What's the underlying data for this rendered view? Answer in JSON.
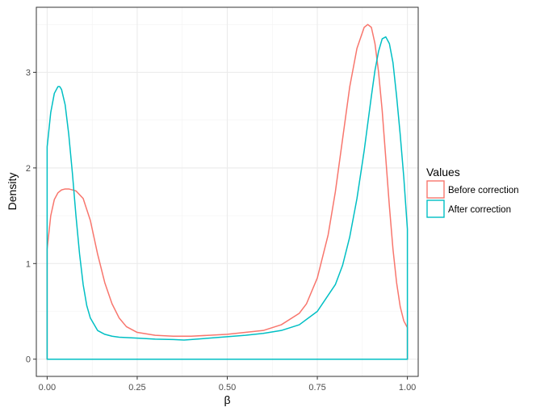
{
  "chart_data": {
    "type": "density",
    "title": "",
    "xlabel": "β",
    "ylabel": "Density",
    "xlim": [
      -0.03,
      1.03
    ],
    "ylim": [
      -0.18,
      3.68
    ],
    "x_ticks": [
      0.0,
      0.25,
      0.5,
      0.75,
      1.0
    ],
    "x_tick_labels": [
      "0.00",
      "0.25",
      "0.50",
      "0.75",
      "1.00"
    ],
    "y_ticks": [
      0,
      1,
      2,
      3
    ],
    "y_tick_labels": [
      "0",
      "1",
      "2",
      "3"
    ],
    "grid": true,
    "legend": {
      "title": "Values",
      "placement": "right"
    },
    "series": [
      {
        "name": "Before correction",
        "color": "#F8766D",
        "x": [
          0.0,
          0.01,
          0.02,
          0.03,
          0.04,
          0.05,
          0.06,
          0.08,
          0.1,
          0.12,
          0.14,
          0.16,
          0.18,
          0.2,
          0.22,
          0.25,
          0.3,
          0.35,
          0.4,
          0.45,
          0.5,
          0.55,
          0.6,
          0.65,
          0.7,
          0.72,
          0.75,
          0.78,
          0.8,
          0.82,
          0.84,
          0.86,
          0.88,
          0.89,
          0.9,
          0.91,
          0.92,
          0.93,
          0.94,
          0.95,
          0.96,
          0.97,
          0.98,
          0.99,
          1.0
        ],
        "y": [
          1.15,
          1.5,
          1.67,
          1.74,
          1.77,
          1.78,
          1.78,
          1.76,
          1.68,
          1.45,
          1.1,
          0.8,
          0.58,
          0.43,
          0.34,
          0.28,
          0.25,
          0.24,
          0.24,
          0.25,
          0.26,
          0.28,
          0.3,
          0.36,
          0.48,
          0.58,
          0.85,
          1.3,
          1.75,
          2.3,
          2.85,
          3.25,
          3.47,
          3.5,
          3.47,
          3.3,
          3.0,
          2.6,
          2.1,
          1.6,
          1.15,
          0.8,
          0.55,
          0.4,
          0.33
        ]
      },
      {
        "name": "After correction",
        "color": "#00BFC4",
        "x": [
          0.0,
          0.005,
          0.01,
          0.02,
          0.03,
          0.035,
          0.04,
          0.05,
          0.06,
          0.07,
          0.08,
          0.09,
          0.1,
          0.11,
          0.12,
          0.14,
          0.16,
          0.18,
          0.2,
          0.25,
          0.3,
          0.35,
          0.38,
          0.4,
          0.45,
          0.5,
          0.55,
          0.6,
          0.65,
          0.7,
          0.75,
          0.8,
          0.82,
          0.84,
          0.86,
          0.88,
          0.9,
          0.91,
          0.92,
          0.93,
          0.94,
          0.95,
          0.96,
          0.97,
          0.98,
          0.99,
          1.0
        ],
        "y": [
          2.22,
          2.4,
          2.58,
          2.78,
          2.85,
          2.85,
          2.82,
          2.66,
          2.35,
          1.95,
          1.5,
          1.1,
          0.78,
          0.56,
          0.43,
          0.3,
          0.26,
          0.24,
          0.23,
          0.22,
          0.21,
          0.205,
          0.2,
          0.205,
          0.22,
          0.235,
          0.25,
          0.27,
          0.3,
          0.36,
          0.5,
          0.78,
          0.98,
          1.28,
          1.68,
          2.18,
          2.75,
          3.02,
          3.22,
          3.35,
          3.37,
          3.3,
          3.1,
          2.75,
          2.35,
          1.9,
          1.36
        ]
      }
    ]
  }
}
